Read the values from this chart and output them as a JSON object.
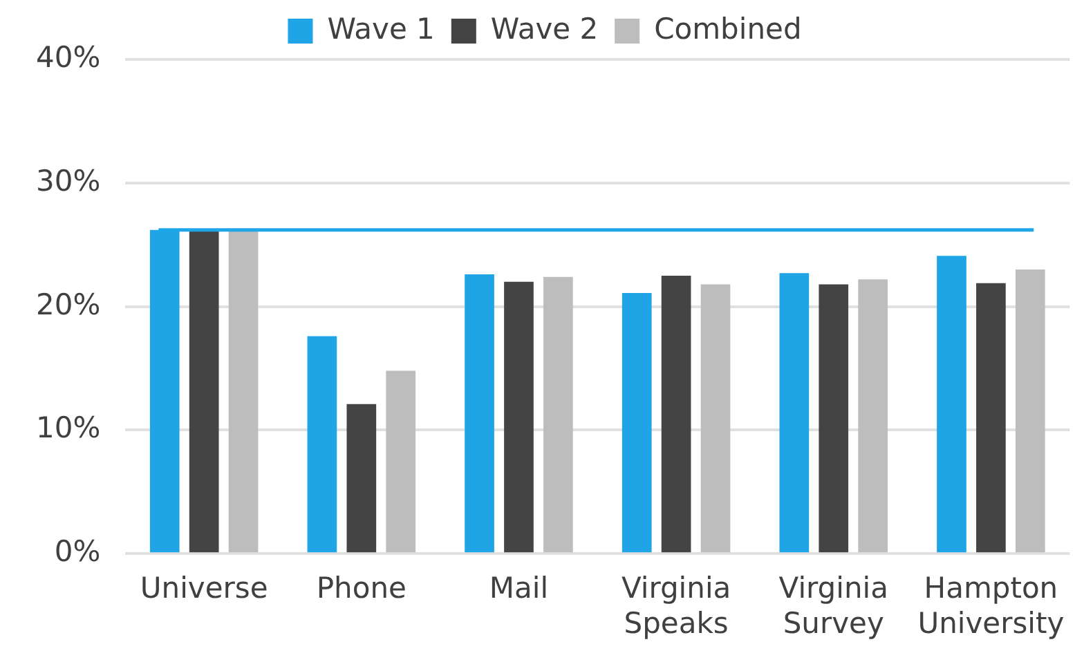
{
  "chart_data": {
    "type": "bar",
    "categories": [
      "Universe",
      "Phone",
      "Mail",
      "Virginia Speaks",
      "Virginia Survey",
      "Hampton University"
    ],
    "series": [
      {
        "name": "Wave 1",
        "color": "#1fa4e6",
        "values": [
          26.2,
          17.6,
          22.6,
          21.1,
          22.7,
          24.1
        ]
      },
      {
        "name": "Wave 2",
        "color": "#444444",
        "values": [
          26.1,
          12.1,
          22.0,
          22.5,
          21.8,
          21.9
        ]
      },
      {
        "name": "Combined",
        "color": "#bdbdbd",
        "values": [
          26.1,
          14.8,
          22.4,
          21.8,
          22.2,
          23.0
        ]
      }
    ],
    "ylim": [
      0,
      40
    ],
    "yticks": [
      {
        "value": 0,
        "label": "0%"
      },
      {
        "value": 10,
        "label": "10%"
      },
      {
        "value": 20,
        "label": "20%"
      },
      {
        "value": 30,
        "label": "30%"
      },
      {
        "value": 40,
        "label": "40%"
      }
    ],
    "grid": "y",
    "legend": "top",
    "ref_lines": [
      {
        "axis": "y",
        "value": 26.2,
        "color": "#1ea7e8"
      }
    ]
  }
}
